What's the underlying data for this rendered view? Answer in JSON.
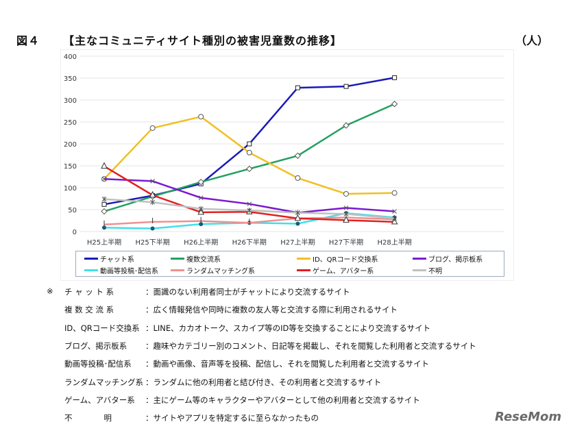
{
  "title": {
    "figure": "図４",
    "text": "【主なコミュニティサイト種別の被害児童数の推移】",
    "unit": "（人）"
  },
  "chart_data": {
    "type": "line",
    "categories": [
      "H25上半期",
      "H25下半期",
      "H26上半期",
      "H26下半期",
      "H27上半期",
      "H27下半期",
      "H28上半期"
    ],
    "ylim": [
      0,
      400
    ],
    "yticks": [
      0,
      50,
      100,
      150,
      200,
      250,
      300,
      350,
      400
    ],
    "grid": true,
    "legend_position": "bottom",
    "series": [
      {
        "name": "チャット系",
        "color": "#1a1ab8",
        "marker": "square",
        "values": [
          62,
          82,
          109,
          200,
          328,
          331,
          351
        ]
      },
      {
        "name": "複数交流系",
        "color": "#22a060",
        "marker": "diamond",
        "values": [
          46,
          80,
          113,
          143,
          173,
          242,
          291
        ]
      },
      {
        "name": "ID、QRコード交換系",
        "color": "#f0c020",
        "marker": "circle",
        "values": [
          120,
          236,
          262,
          180,
          122,
          86,
          88
        ]
      },
      {
        "name": "ブログ、掲示板系",
        "color": "#7a1ad0",
        "marker": "x",
        "values": [
          120,
          115,
          77,
          63,
          43,
          54,
          46
        ]
      },
      {
        "name": "動画等投稿･配信系",
        "color": "#40e0e8",
        "marker": "dot",
        "values": [
          9,
          7,
          17,
          20,
          18,
          42,
          32
        ]
      },
      {
        "name": "ランダムマッチング系",
        "color": "#f09090",
        "marker": "plus",
        "values": [
          16,
          22,
          24,
          20,
          30,
          32,
          28
        ]
      },
      {
        "name": "ゲーム、アバター系",
        "color": "#e02020",
        "marker": "triangle",
        "values": [
          149,
          83,
          44,
          45,
          30,
          26,
          22
        ]
      },
      {
        "name": "不明",
        "color": "#c0c0c0",
        "marker": "star",
        "values": [
          74,
          67,
          52,
          48,
          43,
          40,
          30
        ]
      }
    ]
  },
  "notes": {
    "mark": "※",
    "items": [
      {
        "label": "チ ャ ッ ト 系",
        "desc": "：面識のない利用者同士がチャットにより交流するサイト"
      },
      {
        "label": "複 数 交 流 系",
        "desc": "：広く情報発信や同時に複数の友人等と交流する際に利用されるサイト"
      },
      {
        "label": "ID、QRコード交換系",
        "desc": "：LINE、カカオトーク、スカイプ等のID等を交換することにより交流するサイト"
      },
      {
        "label": "ブログ、掲示板系",
        "desc": "：趣味やカテゴリー別のコメント、日記等を掲載し、それを閲覧した利用者と交流するサイト"
      },
      {
        "label": "動画等投稿･配信系",
        "desc": "：動画や画像、音声等を投稿、配信し、それを閲覧した利用者と交流するサイト"
      },
      {
        "label": "ランダムマッチング系",
        "desc": "：ランダムに他の利用者と結び付き、その利用者と交流するサイト"
      },
      {
        "label": "ゲーム、アバター系",
        "desc": "：主にゲーム等のキャラクターやアバターとして他の利用者と交流するサイト"
      },
      {
        "label": "不　　　　明",
        "desc": "：サイトやアプリを特定するに至らなかったもの"
      }
    ]
  },
  "logo": "ReseMom"
}
